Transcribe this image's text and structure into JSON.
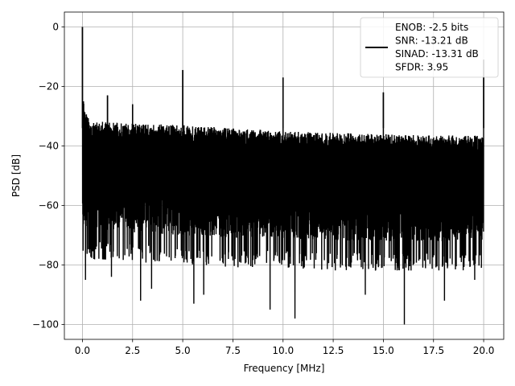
{
  "chart_data": {
    "type": "line",
    "title": "",
    "xlabel": "Frequency [MHz]",
    "ylabel": "PSD [dB]",
    "xlim": [
      -0.9,
      21.0
    ],
    "ylim": [
      -105,
      5
    ],
    "x_ticks": [
      0.0,
      2.5,
      5.0,
      7.5,
      10.0,
      12.5,
      15.0,
      17.5,
      20.0
    ],
    "x_tick_labels": [
      "0.0",
      "2.5",
      "5.0",
      "7.5",
      "10.0",
      "12.5",
      "15.0",
      "17.5",
      "20.0"
    ],
    "y_ticks": [
      0,
      -20,
      -40,
      -60,
      -80,
      -100
    ],
    "y_tick_labels": [
      "0",
      "−20",
      "−40",
      "−60",
      "−80",
      "−100"
    ],
    "grid": true,
    "legend_position": "top-right",
    "line_color": "#000000",
    "series": [
      {
        "legend_lines": [
          "ENOB: -2.5 bits",
          "SNR: -13.21 dB",
          "SINAD: -13.31 dB",
          "SFDR: 3.95"
        ],
        "x_range": [
          0.0,
          20.0
        ],
        "noise_floor": {
          "upper_envelope_db": [
            [
              0.0,
              -31.5
            ],
            [
              2.5,
              -32.5
            ],
            [
              5.0,
              -33.0
            ],
            [
              7.5,
              -34.0
            ],
            [
              10.0,
              -35.0
            ],
            [
              12.5,
              -35.5
            ],
            [
              15.0,
              -36.0
            ],
            [
              17.5,
              -36.5
            ],
            [
              20.0,
              -36.5
            ]
          ],
          "lower_envelope_db": [
            [
              0.0,
              -78
            ],
            [
              2.5,
              -79
            ],
            [
              5.0,
              -80
            ],
            [
              7.5,
              -81
            ],
            [
              10.0,
              -81
            ],
            [
              12.5,
              -82
            ],
            [
              15.0,
              -82
            ],
            [
              17.5,
              -82
            ],
            [
              20.0,
              -82
            ]
          ],
          "deep_dips": [
            [
              0.15,
              -85
            ],
            [
              1.45,
              -84
            ],
            [
              2.9,
              -92
            ],
            [
              3.45,
              -88
            ],
            [
              5.55,
              -93
            ],
            [
              6.05,
              -90
            ],
            [
              9.35,
              -95
            ],
            [
              10.6,
              -98
            ],
            [
              14.1,
              -90
            ],
            [
              16.05,
              -100
            ],
            [
              18.05,
              -92
            ],
            [
              19.55,
              -85
            ]
          ]
        },
        "peaks": [
          {
            "x": 0.0,
            "y": 0.0
          },
          {
            "x": 0.05,
            "y": -25.0
          },
          {
            "x": 1.25,
            "y": -23.0
          },
          {
            "x": 2.5,
            "y": -26.0
          },
          {
            "x": 5.0,
            "y": -14.5
          },
          {
            "x": 10.0,
            "y": -17.0
          },
          {
            "x": 15.0,
            "y": -22.0
          },
          {
            "x": 20.0,
            "y": -11.0
          }
        ]
      }
    ]
  }
}
